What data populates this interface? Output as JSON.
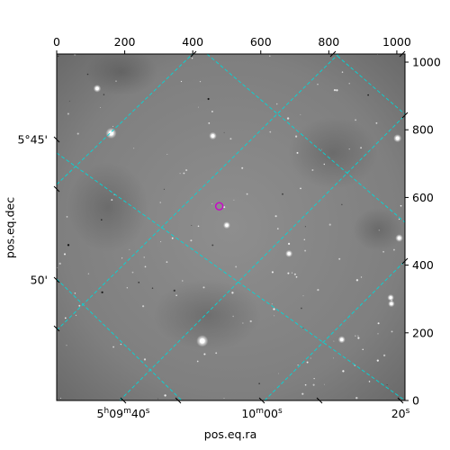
{
  "chart_data": {
    "type": "image",
    "title": "",
    "xlabel": "pos.eq.ra",
    "ylabel": "pos.eq.dec",
    "pixel_axes": {
      "x_range": [
        0,
        1024
      ],
      "y_range": [
        0,
        1024
      ],
      "x_ticks": [
        0,
        200,
        400,
        600,
        800,
        1000
      ],
      "y_ticks": [
        0,
        200,
        400,
        600,
        800,
        1000
      ]
    },
    "world_axes": {
      "ra_ticks": [
        {
          "value": "05:09:40",
          "label_h": "5",
          "label_m": "09",
          "label_s": "40"
        },
        {
          "value": "05:10:00",
          "label_h": "",
          "label_m": "10",
          "label_s": "00"
        },
        {
          "value": "05:10:20",
          "label_h": "",
          "label_m": "",
          "label_s": "20"
        }
      ],
      "dec_ticks": [
        {
          "value": "+05:45:00",
          "label": "5°45'"
        },
        {
          "value": "+05:50:00",
          "label": "50'"
        }
      ]
    },
    "grid": true,
    "grid_color": "#00d8d8",
    "colormap": "gray",
    "marker": {
      "type": "circle",
      "color": "#cc00cc",
      "x": 478,
      "y": 574
    },
    "bright_stars": [
      {
        "x": 160,
        "y": 790,
        "mag": 1.6
      },
      {
        "x": 428,
        "y": 176,
        "mag": 1.8
      },
      {
        "x": 119,
        "y": 922,
        "mag": 0.9
      },
      {
        "x": 1002,
        "y": 775,
        "mag": 1.0
      },
      {
        "x": 1007,
        "y": 480,
        "mag": 0.9
      },
      {
        "x": 459,
        "y": 782,
        "mag": 0.9
      },
      {
        "x": 500,
        "y": 518,
        "mag": 0.8
      },
      {
        "x": 683,
        "y": 434,
        "mag": 0.8
      },
      {
        "x": 838,
        "y": 180,
        "mag": 0.8
      },
      {
        "x": 982,
        "y": 304,
        "mag": 0.7
      },
      {
        "x": 984,
        "y": 286,
        "mag": 0.7
      }
    ]
  }
}
